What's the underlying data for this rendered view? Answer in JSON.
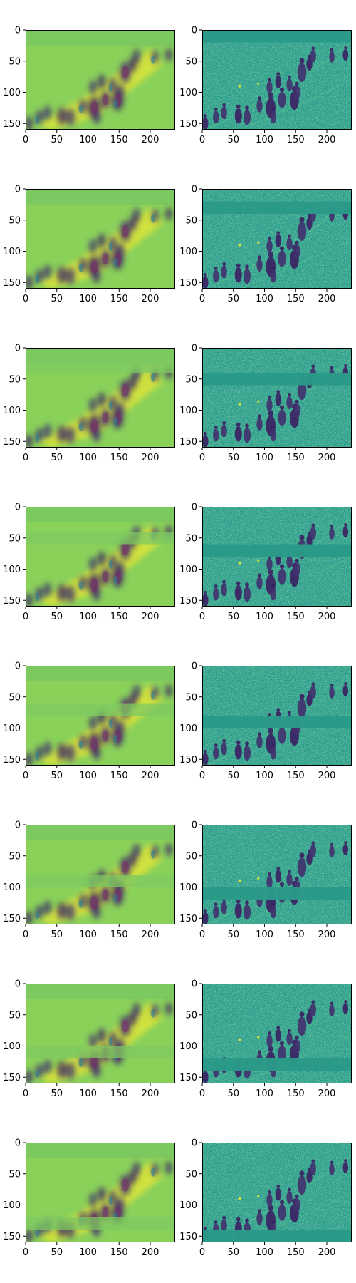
{
  "chart_data": {
    "type": "heatmap",
    "layout": {
      "rows": 8,
      "cols": 2
    },
    "colormap": "viridis",
    "image_shape": [
      160,
      240
    ],
    "xticks": [
      "0",
      "50",
      "100",
      "150",
      "200"
    ],
    "yticks": [
      "0",
      "50",
      "100",
      "150"
    ],
    "xtick_values": [
      0,
      50,
      100,
      150,
      200
    ],
    "ytick_values": [
      0,
      50,
      100,
      150
    ],
    "xlim": [
      0,
      240
    ],
    "ylim": [
      160,
      0
    ],
    "panels": [
      {
        "row": 1,
        "left": {
          "kind": "blurred-saliency-map",
          "masked_band": null
        },
        "right": {
          "kind": "edge-detail-map",
          "masked_band": [
            0,
            20
          ]
        }
      },
      {
        "row": 2,
        "left": {
          "kind": "blurred-saliency-map",
          "masked_band": [
            0,
            20
          ]
        },
        "right": {
          "kind": "edge-detail-map",
          "masked_band": [
            20,
            40
          ]
        }
      },
      {
        "row": 3,
        "left": {
          "kind": "blurred-saliency-map",
          "masked_band": [
            20,
            40
          ]
        },
        "right": {
          "kind": "edge-detail-map",
          "masked_band": [
            40,
            60
          ]
        }
      },
      {
        "row": 4,
        "left": {
          "kind": "blurred-saliency-map",
          "masked_band": [
            40,
            60
          ]
        },
        "right": {
          "kind": "edge-detail-map",
          "masked_band": [
            60,
            80
          ]
        }
      },
      {
        "row": 5,
        "left": {
          "kind": "blurred-saliency-map",
          "masked_band": [
            60,
            80
          ]
        },
        "right": {
          "kind": "edge-detail-map",
          "masked_band": [
            80,
            100
          ]
        }
      },
      {
        "row": 6,
        "left": {
          "kind": "blurred-saliency-map",
          "masked_band": [
            80,
            100
          ]
        },
        "right": {
          "kind": "edge-detail-map",
          "masked_band": [
            100,
            120
          ]
        }
      },
      {
        "row": 7,
        "left": {
          "kind": "blurred-saliency-map",
          "masked_band": [
            100,
            120
          ]
        },
        "right": {
          "kind": "edge-detail-map",
          "masked_band": [
            120,
            140
          ]
        }
      },
      {
        "row": 8,
        "left": {
          "kind": "blurred-saliency-map",
          "masked_band": [
            120,
            140
          ]
        },
        "right": {
          "kind": "edge-detail-map",
          "masked_band": [
            140,
            160
          ]
        }
      }
    ],
    "figures": [
      {
        "x": 5,
        "y": 150,
        "s": 1.0
      },
      {
        "x": 22,
        "y": 140,
        "s": 1.0
      },
      {
        "x": 35,
        "y": 133,
        "s": 1.0
      },
      {
        "x": 58,
        "y": 138,
        "s": 1.2
      },
      {
        "x": 72,
        "y": 140,
        "s": 1.2
      },
      {
        "x": 92,
        "y": 122,
        "s": 1.0
      },
      {
        "x": 110,
        "y": 125,
        "s": 1.6
      },
      {
        "x": 114,
        "y": 140,
        "s": 1.0
      },
      {
        "x": 128,
        "y": 112,
        "s": 1.3
      },
      {
        "x": 148,
        "y": 113,
        "s": 1.5
      },
      {
        "x": 152,
        "y": 100,
        "s": 1.1
      },
      {
        "x": 108,
        "y": 92,
        "s": 1.0
      },
      {
        "x": 122,
        "y": 83,
        "s": 1.0
      },
      {
        "x": 140,
        "y": 88,
        "s": 1.0
      },
      {
        "x": 160,
        "y": 68,
        "s": 1.5
      },
      {
        "x": 172,
        "y": 55,
        "s": 1.0
      },
      {
        "x": 178,
        "y": 42,
        "s": 1.0
      },
      {
        "x": 208,
        "y": 43,
        "s": 0.9
      },
      {
        "x": 230,
        "y": 40,
        "s": 0.9
      }
    ]
  }
}
